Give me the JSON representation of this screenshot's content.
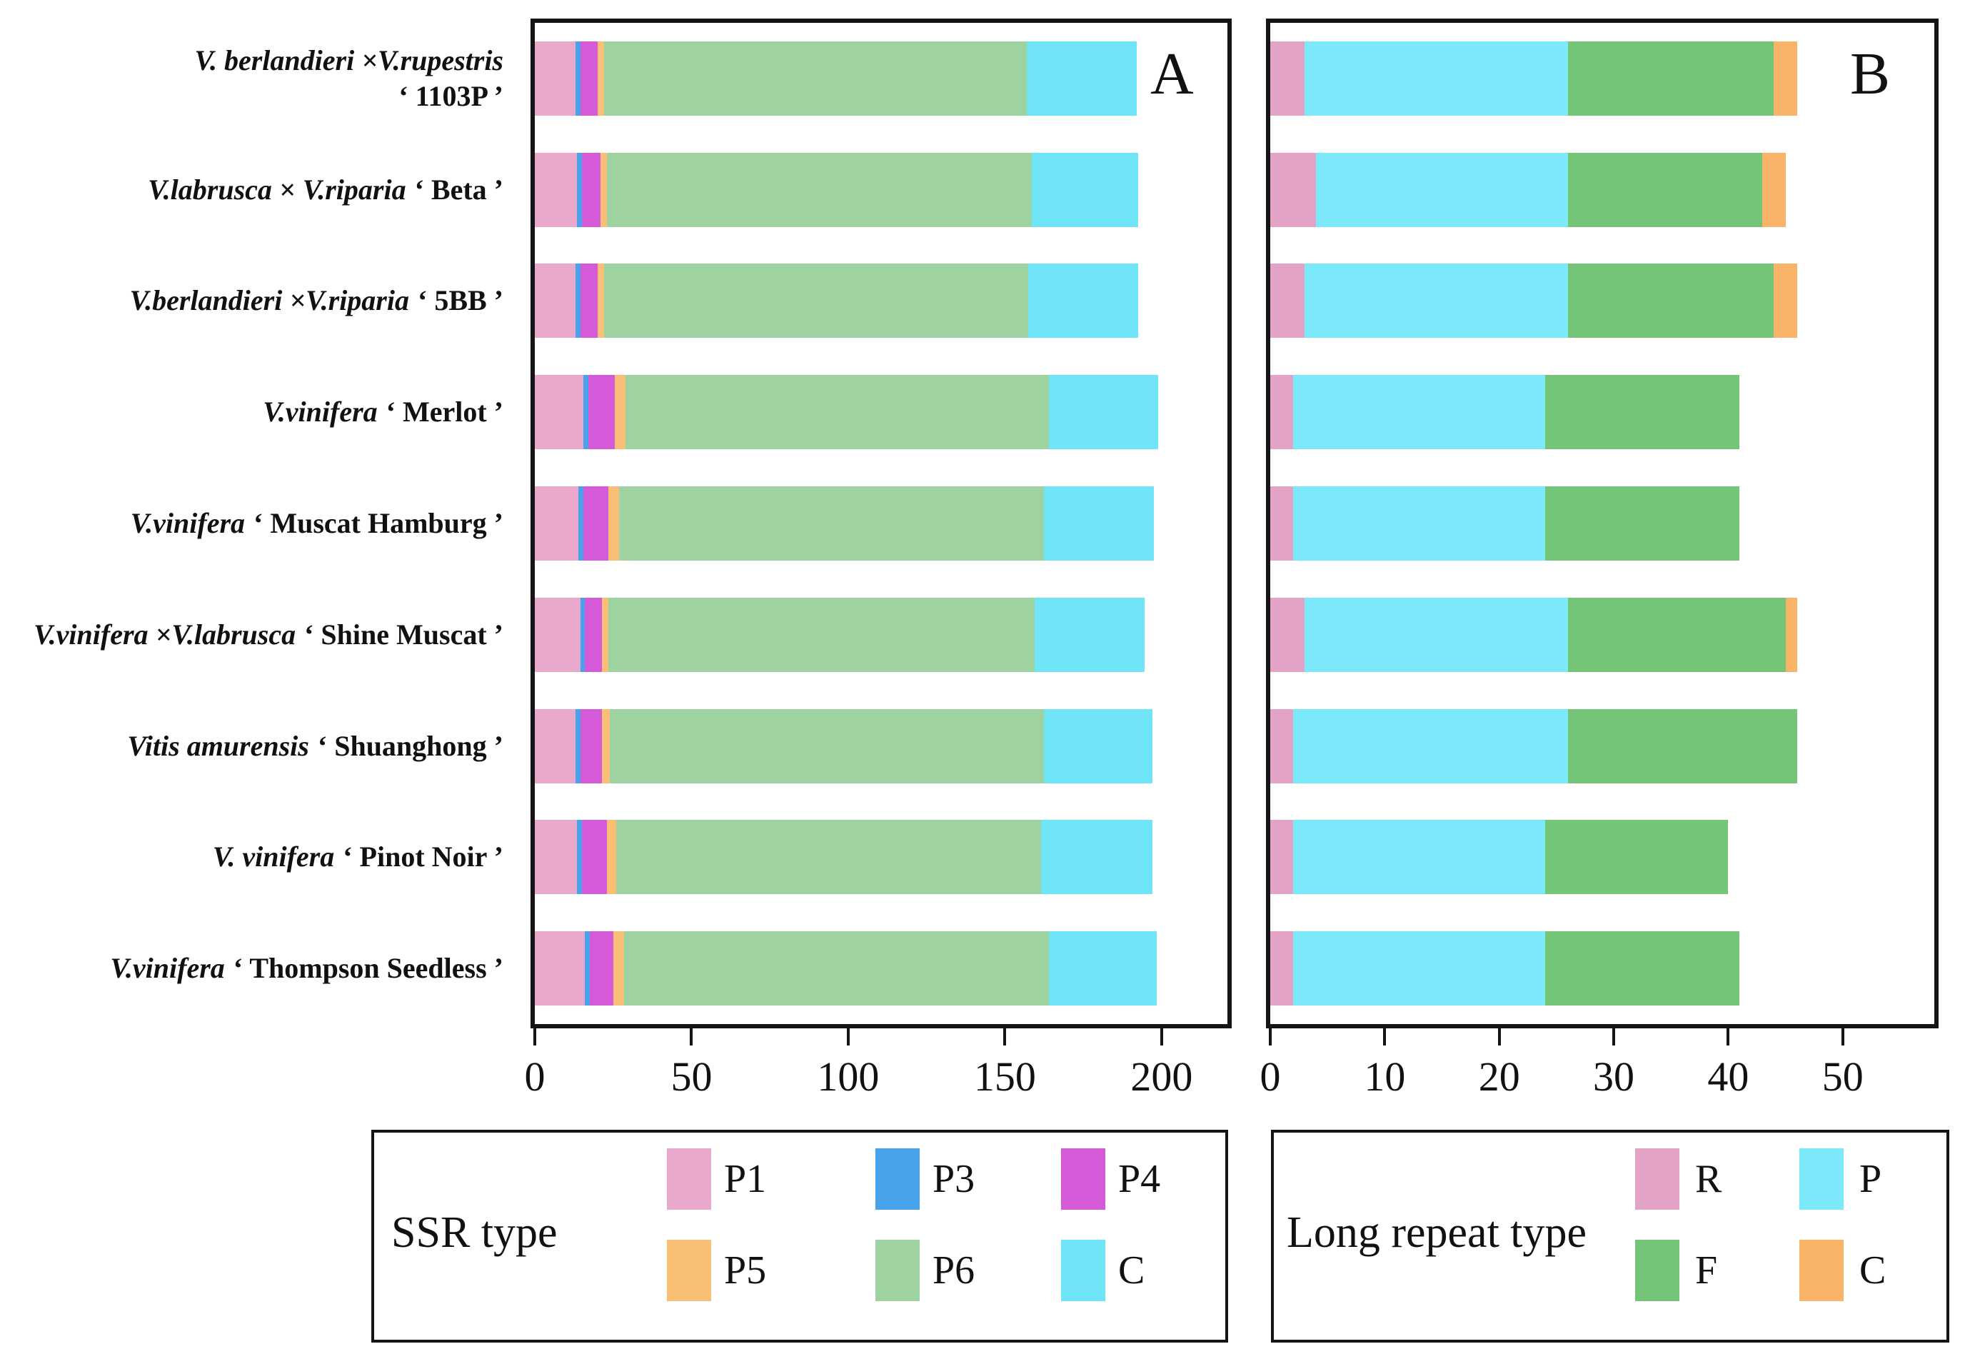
{
  "figure": {
    "category_labels": [
      {
        "species": "V. berlandieri ×V.rupestris",
        "cultivar": "‘ 1103P ’",
        "two_line": true
      },
      {
        "species": "V.labrusca × V.riparia",
        "cultivar": "‘ Beta ’",
        "two_line": false
      },
      {
        "species": "V.berlandieri ×V.riparia",
        "cultivar": "‘ 5BB ’",
        "two_line": false
      },
      {
        "species": "V.vinifera",
        "cultivar": "‘ Merlot ’",
        "two_line": false
      },
      {
        "species": "V.vinifera",
        "cultivar": "‘ Muscat Hamburg ’",
        "two_line": false
      },
      {
        "species": "V.vinifera ×V.labrusca",
        "cultivar": "‘ Shine Muscat ’",
        "two_line": false
      },
      {
        "species": "Vitis amurensis",
        "cultivar": "‘ Shuanghong ’",
        "two_line": false
      },
      {
        "species": "V. vinifera",
        "cultivar": "‘ Pinot Noir ’",
        "two_line": false
      },
      {
        "species": "V.vinifera",
        "cultivar": "‘ Thompson Seedless ’",
        "two_line": false
      }
    ]
  },
  "chart_data": [
    {
      "type": "bar",
      "orientation": "horizontal",
      "stacked": true,
      "panel": "A",
      "legend_title": "SSR type",
      "categories": [
        "V. berlandieri ×V.rupestris ‘ 1103P ’",
        "V.labrusca × V.riparia ‘ Beta ’",
        "V.berlandieri ×V.riparia ‘ 5BB ’",
        "V.vinifera ‘ Merlot ’",
        "V.vinifera ‘ Muscat Hamburg ’",
        "V.vinifera ×V.labrusca ‘ Shine Muscat ’",
        "Vitis amurensis ‘ Shuanghong ’",
        "V. vinifera ‘ Pinot Noir ’",
        "V.vinifera ‘ Thompson Seedless ’"
      ],
      "series": [
        {
          "name": "P1",
          "color": "#e9a9cc",
          "values": [
            13,
            13.5,
            13,
            15.5,
            14,
            14.5,
            13,
            13.5,
            16
          ]
        },
        {
          "name": "P3",
          "color": "#49a3eb",
          "values": [
            1.5,
            1.5,
            1.5,
            1.5,
            1.5,
            1.5,
            1.5,
            1.5,
            1.5
          ]
        },
        {
          "name": "P4",
          "color": "#d55ad8",
          "values": [
            5.5,
            6,
            5.5,
            8.5,
            8,
            5.5,
            7,
            8,
            7.5
          ]
        },
        {
          "name": "P5",
          "color": "#f9bf77",
          "values": [
            2,
            2,
            2,
            3.5,
            3.5,
            2,
            2.5,
            3,
            3.5
          ]
        },
        {
          "name": "P6",
          "color": "#9ed3a1",
          "values": [
            135,
            135.5,
            135.5,
            135,
            135.5,
            136,
            138.5,
            135.5,
            135.5
          ]
        },
        {
          "name": "C",
          "color": "#6fe5f7",
          "values": [
            35,
            34,
            35,
            35,
            35,
            35,
            34.5,
            35.5,
            34.5
          ]
        }
      ],
      "xlim": [
        0,
        221
      ],
      "x_ticks": [
        0,
        50,
        100,
        150,
        200
      ],
      "grid": false,
      "legend_rows": [
        [
          "P1",
          "P3",
          "P4"
        ],
        [
          "P5",
          "P6",
          "C"
        ]
      ]
    },
    {
      "type": "bar",
      "orientation": "horizontal",
      "stacked": true,
      "panel": "B",
      "legend_title": "Long repeat type",
      "categories": [
        "V. berlandieri ×V.rupestris ‘ 1103P ’",
        "V.labrusca × V.riparia ‘ Beta ’",
        "V.berlandieri ×V.riparia ‘ 5BB ’",
        "V.vinifera ‘ Merlot ’",
        "V.vinifera ‘ Muscat Hamburg ’",
        "V.vinifera ×V.labrusca ‘ Shine Muscat ’",
        "Vitis amurensis ‘ Shuanghong ’",
        "V. vinifera ‘ Pinot Noir ’",
        "V.vinifera ‘ Thompson Seedless ’"
      ],
      "series": [
        {
          "name": "R",
          "color": "#e3a3c6",
          "values": [
            3,
            4,
            3,
            2,
            2,
            3,
            2,
            2,
            2
          ]
        },
        {
          "name": "P",
          "color": "#7ce9fa",
          "values": [
            23,
            22,
            23,
            22,
            22,
            23,
            24,
            22,
            22
          ]
        },
        {
          "name": "F",
          "color": "#74c577",
          "values": [
            18,
            17,
            18,
            17,
            17,
            19,
            20,
            16,
            17
          ]
        },
        {
          "name": "C",
          "color": "#f9b368",
          "values": [
            2,
            2,
            2,
            0,
            0,
            1,
            0,
            0,
            0
          ]
        }
      ],
      "xlim": [
        0,
        58
      ],
      "x_ticks": [
        0,
        10,
        20,
        30,
        40,
        50
      ],
      "grid": false,
      "legend_rows": [
        [
          "R",
          "P"
        ],
        [
          "F",
          "C"
        ]
      ]
    }
  ]
}
